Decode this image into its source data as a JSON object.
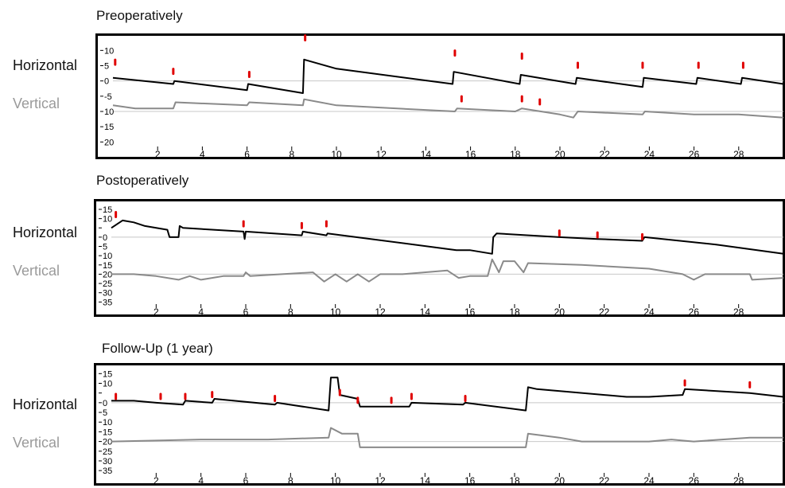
{
  "colors": {
    "horizontal": "#000000",
    "vertical": "#8a8a8a",
    "marker": "#e00000",
    "frame": "#000000",
    "zeroline": "#c8c8c8"
  },
  "chart_data": [
    {
      "type": "line",
      "title": "Preoperatively",
      "row_labels": [
        "Horizontal",
        "Vertical"
      ],
      "x_ticks": [
        2,
        4,
        6,
        8,
        10,
        12,
        14,
        16,
        18,
        20,
        22,
        24,
        26,
        28
      ],
      "xlim": [
        0,
        30
      ],
      "y_ticks": [
        10,
        5,
        0,
        -5,
        -10,
        -15,
        -20
      ],
      "y_tick_labels": [
        "10",
        "5",
        "0",
        "-5",
        "10",
        "15",
        "20"
      ],
      "ylim": [
        -22,
        14
      ],
      "vertical_baseline": -10,
      "series": [
        {
          "name": "Horizontal",
          "points": [
            [
              0,
              1
            ],
            [
              2.7,
              -1
            ],
            [
              2.75,
              0
            ],
            [
              6,
              -3
            ],
            [
              6.05,
              -1
            ],
            [
              8.5,
              -4
            ],
            [
              8.55,
              7
            ],
            [
              10,
              4
            ],
            [
              15.2,
              -1
            ],
            [
              15.25,
              3
            ],
            [
              18.2,
              -1
            ],
            [
              18.25,
              2
            ],
            [
              20.7,
              -1
            ],
            [
              20.75,
              1
            ],
            [
              23.7,
              -2
            ],
            [
              23.75,
              1
            ],
            [
              26.1,
              -1
            ],
            [
              26.15,
              1
            ],
            [
              28.1,
              -1
            ],
            [
              28.15,
              1
            ],
            [
              30,
              -1
            ]
          ]
        },
        {
          "name": "Vertical",
          "points": [
            [
              0,
              -8
            ],
            [
              1,
              -9
            ],
            [
              2.7,
              -9
            ],
            [
              2.8,
              -7
            ],
            [
              6,
              -8
            ],
            [
              6.1,
              -7
            ],
            [
              8.5,
              -8
            ],
            [
              8.55,
              -6
            ],
            [
              10,
              -8
            ],
            [
              15.3,
              -10
            ],
            [
              15.4,
              -9
            ],
            [
              18,
              -10
            ],
            [
              18.3,
              -9
            ],
            [
              20,
              -11
            ],
            [
              20.6,
              -12
            ],
            [
              20.8,
              -10
            ],
            [
              23.7,
              -11
            ],
            [
              23.8,
              -10
            ],
            [
              26,
              -11
            ],
            [
              28,
              -11
            ],
            [
              30,
              -12
            ]
          ]
        }
      ],
      "markers": [
        [
          0.1,
          6
        ],
        [
          2.7,
          3
        ],
        [
          6.1,
          2
        ],
        [
          8.6,
          14
        ],
        [
          15.3,
          9
        ],
        [
          18.3,
          8
        ],
        [
          20.8,
          5
        ],
        [
          23.7,
          5
        ],
        [
          26.2,
          5
        ],
        [
          28.2,
          5
        ],
        [
          15.6,
          -6
        ],
        [
          18.3,
          -6
        ],
        [
          19.1,
          -7
        ]
      ]
    },
    {
      "type": "line",
      "title": "Postoperatively",
      "row_labels": [
        "Horizontal",
        "Vertical"
      ],
      "x_ticks": [
        2,
        4,
        6,
        8,
        10,
        12,
        14,
        16,
        18,
        20,
        22,
        24,
        26,
        28
      ],
      "xlim": [
        0,
        30
      ],
      "y_ticks": [
        15,
        10,
        5,
        0,
        -5,
        -10,
        -15,
        -20,
        -25,
        -30,
        -35
      ],
      "y_tick_labels": [
        "15",
        "10",
        "",
        "0",
        "5",
        "10",
        "15",
        "20",
        "25",
        "30",
        "35"
      ],
      "ylim": [
        -37,
        18
      ],
      "vertical_baseline": -20,
      "series": [
        {
          "name": "Horizontal",
          "points": [
            [
              0,
              5
            ],
            [
              0.5,
              9
            ],
            [
              1,
              8
            ],
            [
              1.5,
              6
            ],
            [
              2.5,
              4
            ],
            [
              2.6,
              0
            ],
            [
              3,
              0
            ],
            [
              3.05,
              6
            ],
            [
              3.2,
              5
            ],
            [
              5.9,
              3
            ],
            [
              5.95,
              -1
            ],
            [
              6,
              3
            ],
            [
              8.5,
              1
            ],
            [
              8.55,
              3
            ],
            [
              9.6,
              1
            ],
            [
              9.65,
              2
            ],
            [
              15.4,
              -7
            ],
            [
              16,
              -7
            ],
            [
              17,
              -9
            ],
            [
              17.05,
              0
            ],
            [
              17.2,
              2
            ],
            [
              20,
              0
            ],
            [
              21.7,
              -1
            ],
            [
              23.7,
              -2
            ],
            [
              23.8,
              0
            ],
            [
              27,
              -4
            ],
            [
              30,
              -9
            ]
          ]
        },
        {
          "name": "Vertical",
          "points": [
            [
              0,
              -20
            ],
            [
              1,
              -20
            ],
            [
              2,
              -21
            ],
            [
              3,
              -23
            ],
            [
              3.5,
              -21
            ],
            [
              4,
              -23
            ],
            [
              5,
              -21
            ],
            [
              5.9,
              -21
            ],
            [
              6,
              -19
            ],
            [
              6.2,
              -21
            ],
            [
              9,
              -19
            ],
            [
              9.5,
              -24
            ],
            [
              10,
              -20
            ],
            [
              10.5,
              -24
            ],
            [
              11,
              -20
            ],
            [
              11.5,
              -24
            ],
            [
              12,
              -20
            ],
            [
              13,
              -20
            ],
            [
              15,
              -18
            ],
            [
              15.5,
              -22
            ],
            [
              16,
              -21
            ],
            [
              16.8,
              -21
            ],
            [
              17,
              -12
            ],
            [
              17.3,
              -19
            ],
            [
              17.5,
              -13
            ],
            [
              18,
              -13
            ],
            [
              18.4,
              -19
            ],
            [
              18.6,
              -14
            ],
            [
              21,
              -15
            ],
            [
              24,
              -17
            ],
            [
              25.5,
              -20
            ],
            [
              26,
              -23
            ],
            [
              26.5,
              -20
            ],
            [
              28.5,
              -20
            ],
            [
              28.6,
              -23
            ],
            [
              30,
              -22
            ]
          ]
        }
      ],
      "markers": [
        [
          0.2,
          12
        ],
        [
          5.9,
          7
        ],
        [
          8.5,
          6
        ],
        [
          9.6,
          7
        ],
        [
          20,
          2
        ],
        [
          21.7,
          1
        ],
        [
          23.7,
          0
        ]
      ]
    },
    {
      "type": "line",
      "title": "Follow-Up (1 year)",
      "row_labels": [
        "Horizontal",
        "Vertical"
      ],
      "x_ticks": [
        2,
        4,
        6,
        8,
        10,
        12,
        14,
        16,
        18,
        20,
        22,
        24,
        26,
        28
      ],
      "xlim": [
        0,
        30
      ],
      "y_ticks": [
        15,
        10,
        5,
        0,
        -5,
        -10,
        -15,
        -20,
        -25,
        -30,
        -35
      ],
      "y_tick_labels": [
        "15",
        "10",
        "",
        "0",
        "5",
        "10",
        "15",
        "20",
        "25",
        "30",
        "35"
      ],
      "ylim": [
        -37,
        18
      ],
      "vertical_baseline": -20,
      "series": [
        {
          "name": "Horizontal",
          "points": [
            [
              0,
              1
            ],
            [
              1,
              1
            ],
            [
              2,
              0
            ],
            [
              3.2,
              -1
            ],
            [
              3.3,
              1
            ],
            [
              4.5,
              0
            ],
            [
              4.6,
              2
            ],
            [
              7.3,
              -1
            ],
            [
              7.4,
              0
            ],
            [
              9.7,
              -4
            ],
            [
              9.8,
              13
            ],
            [
              10.1,
              13
            ],
            [
              10.2,
              4
            ],
            [
              11,
              2
            ],
            [
              11.1,
              -2
            ],
            [
              12.5,
              -2
            ],
            [
              13.3,
              -2
            ],
            [
              13.4,
              0
            ],
            [
              15.7,
              -1
            ],
            [
              15.8,
              0
            ],
            [
              18.5,
              -4
            ],
            [
              18.6,
              8
            ],
            [
              19,
              7
            ],
            [
              23,
              3
            ],
            [
              24,
              3
            ],
            [
              25.5,
              4
            ],
            [
              25.6,
              7
            ],
            [
              28.5,
              5
            ],
            [
              30,
              3
            ]
          ]
        },
        {
          "name": "Vertical",
          "points": [
            [
              0,
              -20
            ],
            [
              4,
              -19
            ],
            [
              7,
              -19
            ],
            [
              9.7,
              -18
            ],
            [
              9.8,
              -13
            ],
            [
              10.3,
              -16
            ],
            [
              11,
              -16
            ],
            [
              11.1,
              -23
            ],
            [
              18.5,
              -23
            ],
            [
              18.6,
              -16
            ],
            [
              20,
              -18
            ],
            [
              21,
              -20
            ],
            [
              24,
              -20
            ],
            [
              25,
              -19
            ],
            [
              26,
              -20
            ],
            [
              28.5,
              -18
            ],
            [
              30,
              -18
            ]
          ]
        }
      ],
      "markers": [
        [
          0.2,
          3
        ],
        [
          2.2,
          3
        ],
        [
          3.3,
          3
        ],
        [
          4.5,
          4
        ],
        [
          7.3,
          2
        ],
        [
          10.2,
          5
        ],
        [
          11,
          1
        ],
        [
          12.5,
          1
        ],
        [
          13.4,
          3
        ],
        [
          15.8,
          2
        ],
        [
          25.6,
          10
        ],
        [
          28.5,
          9
        ]
      ]
    }
  ]
}
